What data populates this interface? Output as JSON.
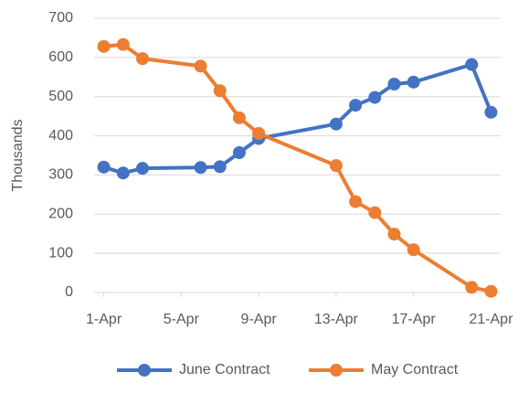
{
  "chart_data": {
    "type": "line",
    "y_label": "Thousands",
    "x": [
      1,
      2,
      3,
      6,
      7,
      8,
      9,
      13,
      14,
      15,
      16,
      17,
      20,
      21
    ],
    "xlim": [
      0.5,
      21.5
    ],
    "xticks": [
      {
        "value": 1,
        "label": "1-Apr"
      },
      {
        "value": 5,
        "label": "5-Apr"
      },
      {
        "value": 9,
        "label": "9-Apr"
      },
      {
        "value": 13,
        "label": "13-Apr"
      },
      {
        "value": 17,
        "label": "17-Apr"
      },
      {
        "value": 21,
        "label": "21-Apr"
      }
    ],
    "ylim": [
      0,
      700
    ],
    "yticks": [
      0,
      100,
      200,
      300,
      400,
      500,
      600,
      700
    ],
    "grid": true,
    "legend": "bottom",
    "series": [
      {
        "name": "June Contract",
        "color": "#4472c4",
        "values": [
          320,
          305,
          317,
          319,
          321,
          357,
          393,
          430,
          478,
          498,
          532,
          537,
          582,
          460
        ]
      },
      {
        "name": "May Contract",
        "color": "#ed7d31",
        "values": [
          628,
          633,
          597,
          578,
          515,
          446,
          406,
          324,
          232,
          204,
          149,
          109,
          13,
          3
        ]
      }
    ]
  }
}
